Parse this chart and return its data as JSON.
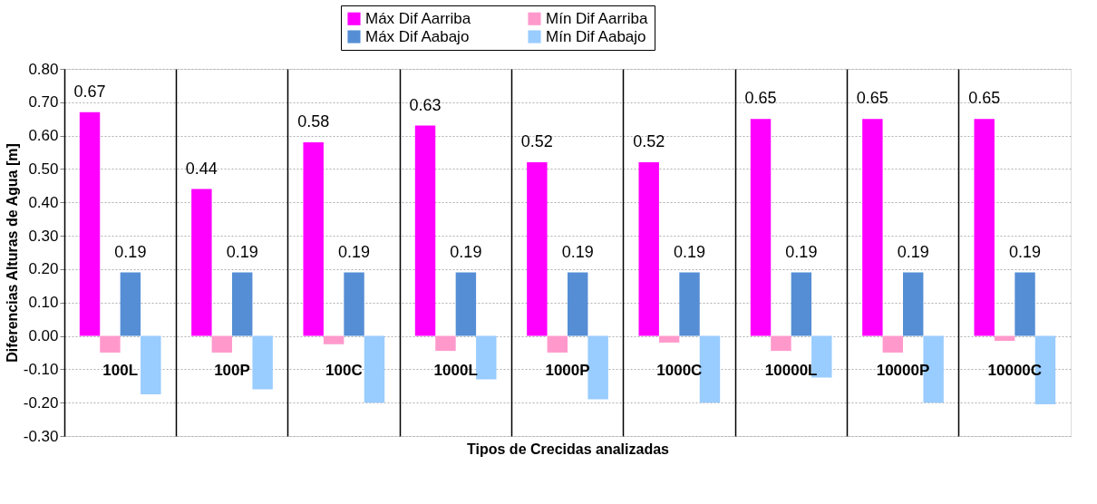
{
  "chart_data": {
    "type": "bar",
    "xlabel": "Tipos de Crecidas analizadas",
    "ylabel": "Diferencias Alturas de Agua [m]",
    "categories": [
      "100L",
      "100P",
      "100C",
      "1000L",
      "1000P",
      "1000C",
      "10000L",
      "10000P",
      "10000C"
    ],
    "series": [
      {
        "name": "Máx Dif Aarriba",
        "color": "#ff00ff",
        "values": [
          0.67,
          0.44,
          0.58,
          0.63,
          0.52,
          0.52,
          0.65,
          0.65,
          0.65
        ],
        "value_labels": [
          "0.67",
          "0.44",
          "0.58",
          "0.63",
          "0.52",
          "0.52",
          "0.65",
          "0.65",
          "0.65"
        ]
      },
      {
        "name": "Mín Dif Aarriba",
        "color": "#ff99cc",
        "values": [
          -0.05,
          -0.05,
          -0.025,
          -0.045,
          -0.05,
          -0.02,
          -0.045,
          -0.05,
          -0.015
        ]
      },
      {
        "name": "Máx Dif Aabajo",
        "color": "#558ed5",
        "values": [
          0.19,
          0.19,
          0.19,
          0.19,
          0.19,
          0.19,
          0.19,
          0.19,
          0.19
        ],
        "value_labels": [
          "0.19",
          "0.19",
          "0.19",
          "0.19",
          "0.19",
          "0.19",
          "0.19",
          "0.19",
          "0.19"
        ]
      },
      {
        "name": "Mín Dif Aabajo",
        "color": "#99ccff",
        "values": [
          -0.175,
          -0.16,
          -0.2,
          -0.13,
          -0.19,
          -0.2,
          -0.125,
          -0.2,
          -0.205
        ]
      }
    ],
    "ylim": [
      -0.3,
      0.8
    ],
    "yticks": [
      {
        "value": -0.3,
        "label": "-0.30"
      },
      {
        "value": -0.2,
        "label": "-0.20"
      },
      {
        "value": -0.1,
        "label": "-0.10"
      },
      {
        "value": 0,
        "label": "0.00"
      },
      {
        "value": 0.1,
        "label": "0.10"
      },
      {
        "value": 0.2,
        "label": "0.20"
      },
      {
        "value": 0.3,
        "label": "0.30"
      },
      {
        "value": 0.4,
        "label": "0.40"
      },
      {
        "value": 0.5,
        "label": "0.50"
      },
      {
        "value": 0.6,
        "label": "0.60"
      },
      {
        "value": 0.7,
        "label": "0.70"
      },
      {
        "value": 0.8,
        "label": "0.80"
      }
    ],
    "grid": true,
    "legend": "top"
  }
}
